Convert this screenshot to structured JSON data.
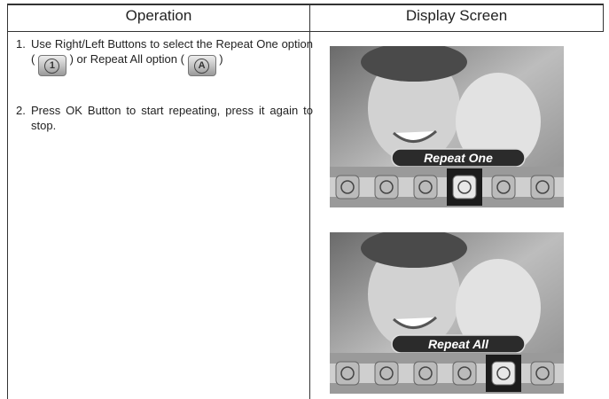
{
  "header": {
    "operation": "Operation",
    "display_screen": "Display Screen"
  },
  "steps": [
    {
      "number": "1.",
      "text_a": "Use Right/Left Buttons to select the Repeat One option (",
      "icon_a": "1",
      "text_b": ") or Repeat All option (",
      "icon_b": "A",
      "text_c": ")"
    },
    {
      "number": "2.",
      "text": "Press OK Button to start repeating, press it again to stop."
    }
  ],
  "screens": [
    {
      "label": "Repeat One"
    },
    {
      "label": "Repeat All"
    }
  ]
}
